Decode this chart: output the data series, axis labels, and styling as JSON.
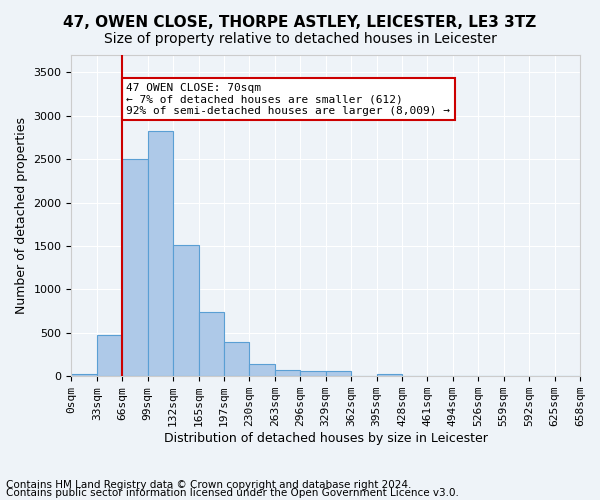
{
  "title1": "47, OWEN CLOSE, THORPE ASTLEY, LEICESTER, LE3 3TZ",
  "title2": "Size of property relative to detached houses in Leicester",
  "xlabel": "Distribution of detached houses by size in Leicester",
  "ylabel": "Number of detached properties",
  "footer1": "Contains HM Land Registry data © Crown copyright and database right 2024.",
  "footer2": "Contains public sector information licensed under the Open Government Licence v3.0.",
  "bin_labels": [
    "0sqm",
    "33sqm",
    "66sqm",
    "99sqm",
    "132sqm",
    "165sqm",
    "197sqm",
    "230sqm",
    "263sqm",
    "296sqm",
    "329sqm",
    "362sqm",
    "395sqm",
    "428sqm",
    "461sqm",
    "494sqm",
    "526sqm",
    "559sqm",
    "592sqm",
    "625sqm",
    "658sqm"
  ],
  "bar_values": [
    20,
    480,
    2500,
    2820,
    1510,
    740,
    390,
    145,
    75,
    55,
    55,
    0,
    30,
    0,
    0,
    0,
    0,
    0,
    0,
    0
  ],
  "bar_color": "#aec9e8",
  "bar_edge_color": "#5a9fd4",
  "bar_width": 1.0,
  "ylim": [
    0,
    3700
  ],
  "yticks": [
    0,
    500,
    1000,
    1500,
    2000,
    2500,
    3000,
    3500
  ],
  "vline_x": 2,
  "vline_color": "#cc0000",
  "annotation_text": "47 OWEN CLOSE: 70sqm\n← 7% of detached houses are smaller (612)\n92% of semi-detached houses are larger (8,009) →",
  "annotation_box_color": "#cc0000",
  "annotation_text_color": "#000000",
  "bg_color": "#eef3f8",
  "grid_color": "#ffffff",
  "title1_fontsize": 11,
  "title2_fontsize": 10,
  "xlabel_fontsize": 9,
  "ylabel_fontsize": 9,
  "tick_fontsize": 8,
  "footer_fontsize": 7.5
}
